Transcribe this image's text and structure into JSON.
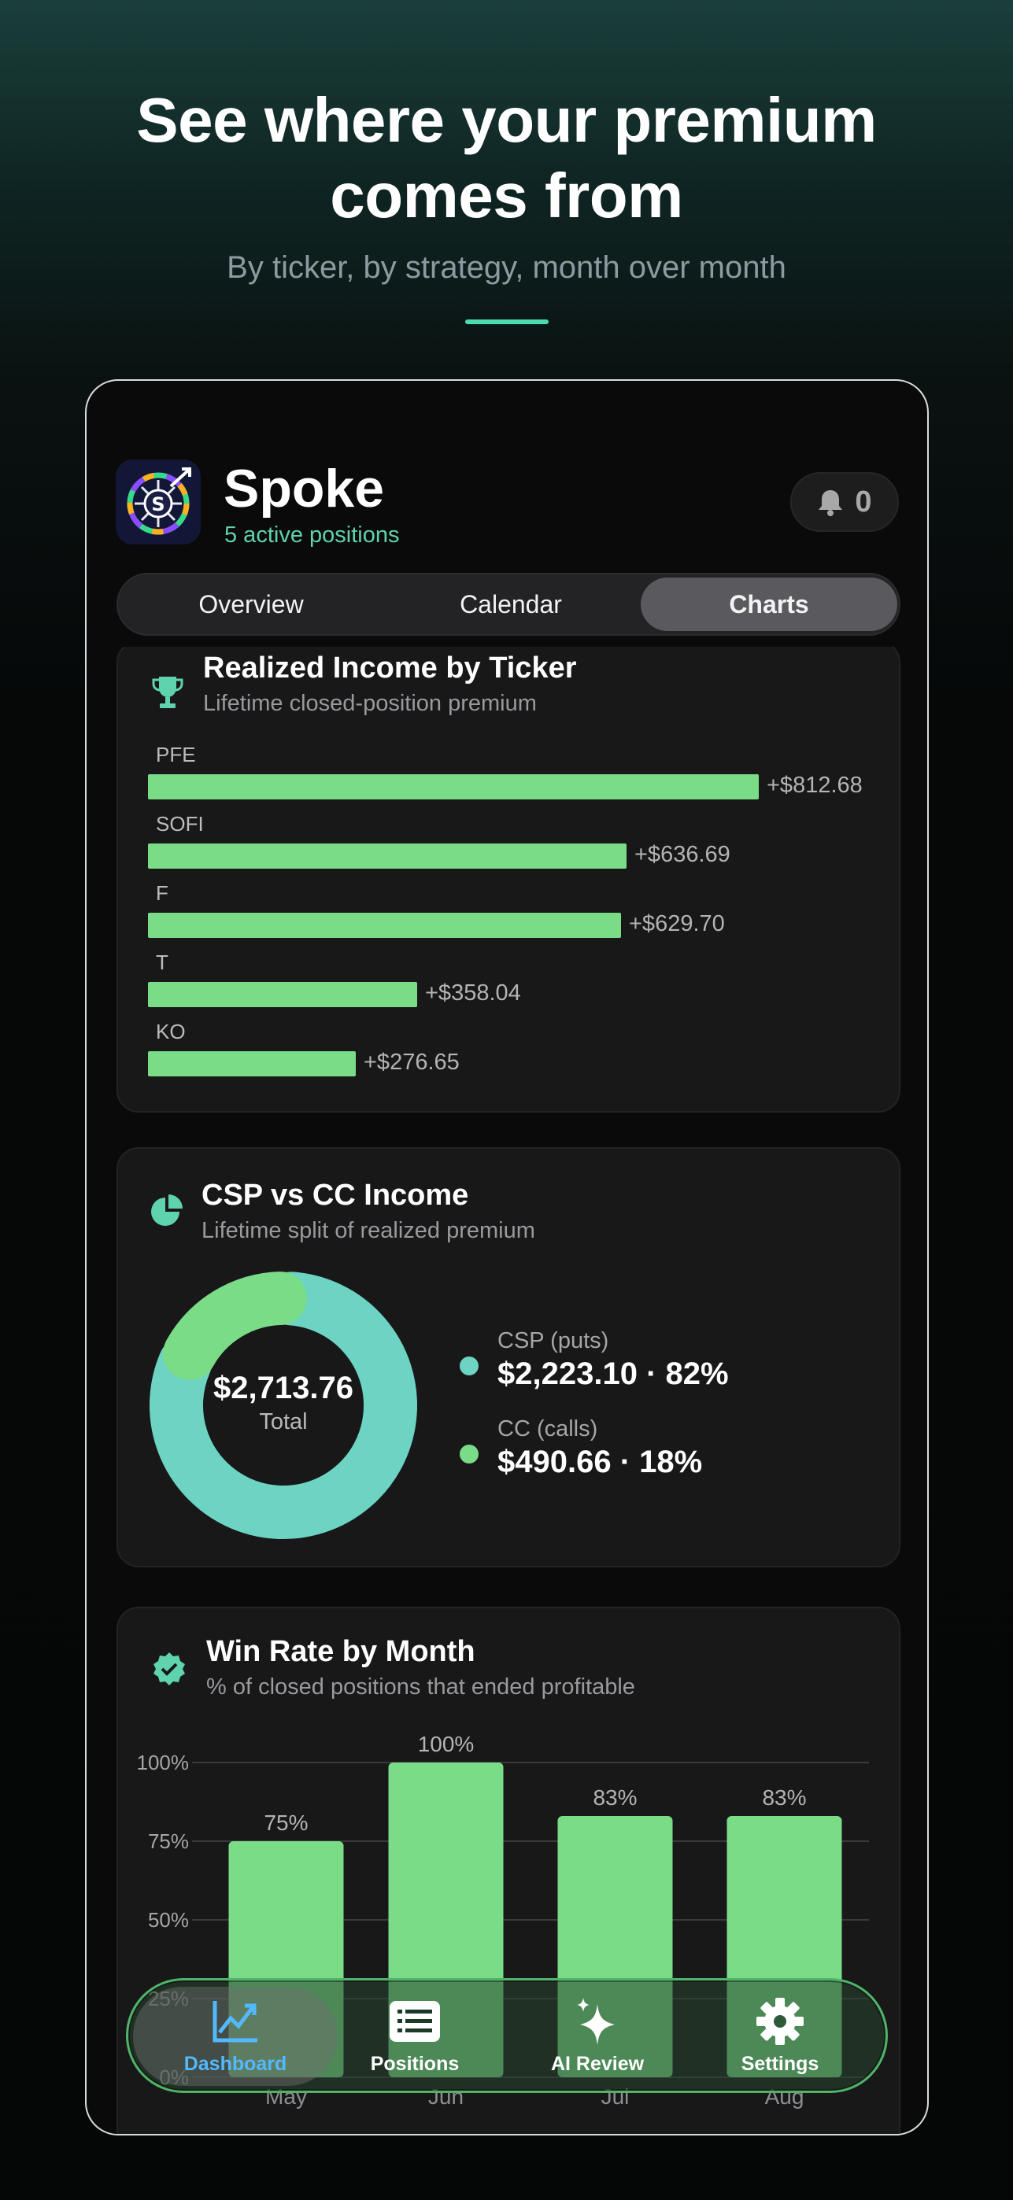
{
  "hero": {
    "title_line1": "See where your premium",
    "title_line2": "comes from",
    "subtitle": "By ticker, by strategy, month over month"
  },
  "app": {
    "name": "Spoke",
    "status": "5 active positions",
    "notification_count": "0",
    "icon": "spoke-app-icon"
  },
  "segments": [
    {
      "label": "Overview",
      "active": false
    },
    {
      "label": "Calendar",
      "active": false
    },
    {
      "label": "Charts",
      "active": true
    }
  ],
  "income_card": {
    "title": "Realized Income by Ticker",
    "subtitle": "Lifetime closed-position premium",
    "icon": "trophy-icon"
  },
  "donut_card": {
    "title": "CSP vs CC Income",
    "subtitle": "Lifetime split of realized premium",
    "icon": "pie-chart-icon",
    "total_value": "$2,713.76",
    "total_label": "Total",
    "legend": [
      {
        "label": "CSP (puts)",
        "value": "$2,223.10 · 82%",
        "color": "#6dd3c3"
      },
      {
        "label": "CC (calls)",
        "value": "$490.66 · 18%",
        "color": "#7bdc88"
      }
    ]
  },
  "winrate_card": {
    "title": "Win Rate by Month",
    "subtitle": "% of closed positions that ended profitable",
    "icon": "verified-badge-icon"
  },
  "chart_data": [
    {
      "type": "bar",
      "orientation": "horizontal",
      "categories": [
        "PFE",
        "SOFI",
        "F",
        "T",
        "KO"
      ],
      "values": [
        812.68,
        636.69,
        629.7,
        358.04,
        276.65
      ],
      "data_labels": [
        "+$812.68",
        "+$636.69",
        "+$629.70",
        "+$358.04",
        "+$276.65"
      ],
      "title": "Realized Income by Ticker",
      "subtitle": "Lifetime closed-position premium",
      "color": "#7bdc88"
    },
    {
      "type": "pie",
      "style": "donut",
      "categories": [
        "CSP (puts)",
        "CC (calls)"
      ],
      "values": [
        2223.1,
        490.66
      ],
      "percentages": [
        82,
        18
      ],
      "colors": [
        "#6dd3c3",
        "#7bdc88"
      ],
      "title": "CSP vs CC Income"
    },
    {
      "type": "bar",
      "categories": [
        "May",
        "Jun",
        "Jul",
        "Aug"
      ],
      "values": [
        75,
        100,
        83,
        83
      ],
      "data_labels": [
        "75%",
        "100%",
        "83%",
        "83%"
      ],
      "y_ticks": [
        "0%",
        "25%",
        "50%",
        "75%",
        "100%"
      ],
      "ylim": [
        0,
        100
      ],
      "grid": true,
      "title": "Win Rate by Month",
      "color": "#7bdc88"
    }
  ],
  "tabbar": {
    "items": [
      {
        "label": "Dashboard",
        "icon": "line-chart-icon",
        "active": true
      },
      {
        "label": "Positions",
        "icon": "list-icon",
        "active": false
      },
      {
        "label": "AI Review",
        "icon": "sparkles-icon",
        "active": false
      },
      {
        "label": "Settings",
        "icon": "gear-icon",
        "active": false
      }
    ]
  },
  "colors": {
    "accent": "#5ed3ad",
    "bar_green": "#7bdc88",
    "teal": "#6dd3c3",
    "active_tab": "#52b9ff"
  }
}
